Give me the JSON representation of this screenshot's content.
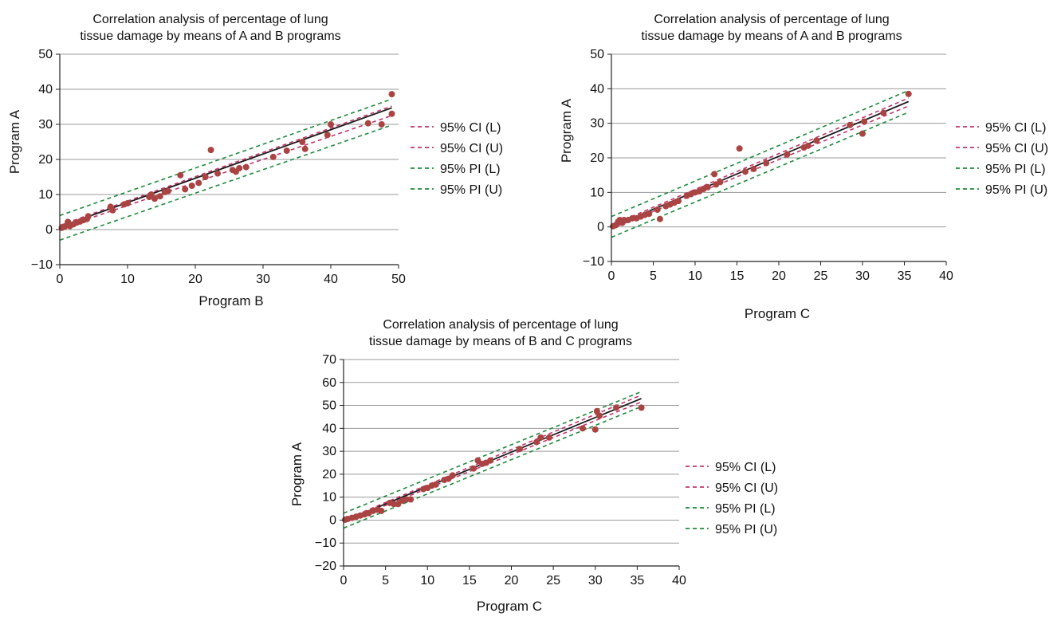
{
  "colors": {
    "points": "#a94442",
    "fit": "#1b1b1b",
    "ci": "#c2356b",
    "pi": "#1f8a3c",
    "grid": "#9a9a9a",
    "axis": "#222222"
  },
  "chart_data": [
    {
      "type": "scatter",
      "title_lines": [
        "Correlation analysis of percentage of lung",
        "tissue damage by means of A and B programs"
      ],
      "xlabel": "Program B",
      "ylabel": "Program A",
      "xlim": [
        0,
        50
      ],
      "ylim": [
        -10,
        50
      ],
      "xticks": [
        0,
        10,
        20,
        30,
        40,
        50
      ],
      "yticks": [
        -10,
        0,
        10,
        20,
        30,
        40,
        50
      ],
      "grid": "horizontal",
      "legend_position": "right",
      "legend": [
        "95% CI (L)",
        "95% CI (U)",
        "95% PI (L)",
        "95% PI (U)"
      ],
      "fit_line": {
        "x": [
          0,
          49
        ],
        "y": [
          0.8,
          34.7
        ]
      },
      "ci_lower": {
        "x": [
          0,
          49
        ],
        "y": [
          0.3,
          32.5
        ]
      },
      "ci_upper": {
        "x": [
          0,
          49
        ],
        "y": [
          1.2,
          35.2
        ]
      },
      "pi_lower": {
        "x": [
          0,
          49
        ],
        "y": [
          -3.0,
          29.8
        ]
      },
      "pi_upper": {
        "x": [
          0,
          49
        ],
        "y": [
          4.0,
          37.2
        ]
      },
      "points": [
        [
          0.3,
          0.5
        ],
        [
          0.7,
          0.8
        ],
        [
          1.0,
          1.2
        ],
        [
          1.2,
          2.2
        ],
        [
          1.5,
          1.0
        ],
        [
          2.0,
          1.5
        ],
        [
          2.5,
          2.0
        ],
        [
          3.0,
          2.3
        ],
        [
          3.5,
          2.7
        ],
        [
          4.0,
          3.0
        ],
        [
          4.2,
          3.8
        ],
        [
          7.5,
          6.5
        ],
        [
          7.8,
          5.5
        ],
        [
          9.5,
          7.2
        ],
        [
          10.0,
          7.5
        ],
        [
          13.2,
          9.3
        ],
        [
          13.5,
          10.0
        ],
        [
          14.0,
          8.8
        ],
        [
          14.8,
          9.5
        ],
        [
          15.5,
          10.7
        ],
        [
          16.0,
          11.0
        ],
        [
          17.8,
          15.5
        ],
        [
          18.5,
          11.5
        ],
        [
          19.5,
          12.5
        ],
        [
          20.5,
          13.3
        ],
        [
          21.5,
          15.0
        ],
        [
          22.3,
          22.7
        ],
        [
          23.3,
          16.0
        ],
        [
          25.5,
          17.0
        ],
        [
          26.0,
          16.5
        ],
        [
          26.5,
          17.5
        ],
        [
          27.5,
          17.8
        ],
        [
          31.5,
          20.7
        ],
        [
          33.5,
          22.5
        ],
        [
          35.8,
          25.0
        ],
        [
          36.2,
          23.0
        ],
        [
          39.5,
          27.0
        ],
        [
          40.0,
          30.0
        ],
        [
          45.5,
          30.3
        ],
        [
          47.5,
          30.0
        ],
        [
          49.0,
          38.6
        ],
        [
          49.0,
          33.0
        ]
      ]
    },
    {
      "type": "scatter",
      "title_lines": [
        "Correlation analysis of percentage of lung",
        "tissue damage by means of A and B programs"
      ],
      "xlabel": "Program C",
      "ylabel": "Program A",
      "xlim": [
        0,
        40
      ],
      "ylim": [
        -10,
        50
      ],
      "xticks": [
        0,
        5,
        10,
        15,
        20,
        25,
        30,
        35,
        40
      ],
      "yticks": [
        -10,
        0,
        10,
        20,
        30,
        40,
        50
      ],
      "grid": "horizontal",
      "legend_position": "right",
      "legend": [
        "95% CI (L)",
        "95% CI (U)",
        "95% PI (L)",
        "95% PI (U)"
      ],
      "fit_line": {
        "x": [
          0,
          35.5
        ],
        "y": [
          0.0,
          36.3
        ]
      },
      "ci_lower": {
        "x": [
          0,
          35.5
        ],
        "y": [
          -0.5,
          35.0
        ]
      },
      "ci_upper": {
        "x": [
          0,
          35.5
        ],
        "y": [
          0.5,
          37.3
        ]
      },
      "pi_lower": {
        "x": [
          0,
          35.5
        ],
        "y": [
          -3.0,
          33.2
        ]
      },
      "pi_upper": {
        "x": [
          0,
          35.5
        ],
        "y": [
          3.0,
          39.5
        ]
      },
      "points": [
        [
          0.2,
          0.2
        ],
        [
          0.5,
          0.5
        ],
        [
          0.8,
          1.5
        ],
        [
          1.0,
          2.0
        ],
        [
          1.3,
          1.2
        ],
        [
          1.5,
          2.0
        ],
        [
          2.0,
          2.0
        ],
        [
          2.5,
          2.5
        ],
        [
          3.0,
          2.5
        ],
        [
          3.5,
          3.0
        ],
        [
          4.0,
          3.5
        ],
        [
          4.5,
          3.8
        ],
        [
          5.5,
          5.0
        ],
        [
          5.8,
          2.3
        ],
        [
          6.5,
          6.0
        ],
        [
          7.0,
          6.5
        ],
        [
          7.5,
          7.0
        ],
        [
          8.0,
          7.5
        ],
        [
          9.0,
          9.0
        ],
        [
          9.5,
          9.5
        ],
        [
          10.0,
          10.0
        ],
        [
          10.5,
          10.3
        ],
        [
          11.0,
          11.0
        ],
        [
          11.5,
          11.5
        ],
        [
          12.3,
          15.3
        ],
        [
          12.5,
          12.3
        ],
        [
          13.0,
          13.0
        ],
        [
          15.3,
          22.7
        ],
        [
          16.0,
          16.0
        ],
        [
          17.0,
          16.8
        ],
        [
          18.5,
          18.5
        ],
        [
          21.0,
          21.0
        ],
        [
          23.0,
          23.0
        ],
        [
          23.5,
          23.5
        ],
        [
          24.5,
          25.0
        ],
        [
          28.5,
          29.5
        ],
        [
          30.0,
          27.0
        ],
        [
          30.2,
          30.5
        ],
        [
          32.5,
          33.0
        ],
        [
          35.5,
          38.5
        ]
      ]
    },
    {
      "type": "scatter",
      "title_lines": [
        "Correlation analysis of percentage of lung",
        "tissue damage by means of B and C programs"
      ],
      "xlabel": "Program C",
      "ylabel": "Program A",
      "xlim": [
        0,
        40
      ],
      "ylim": [
        -20,
        70
      ],
      "xticks": [
        0,
        5,
        10,
        15,
        20,
        25,
        30,
        35,
        40
      ],
      "yticks": [
        -20,
        -10,
        0,
        10,
        20,
        30,
        40,
        50,
        60,
        70
      ],
      "grid": "horizontal",
      "legend_position": "right",
      "legend": [
        "95% CI (L)",
        "95% CI (U)",
        "95% PI (L)",
        "95% PI (U)"
      ],
      "fit_line": {
        "x": [
          0,
          35.5
        ],
        "y": [
          -0.5,
          53.0
        ]
      },
      "ci_lower": {
        "x": [
          0,
          35.5
        ],
        "y": [
          -1.0,
          51.5
        ]
      },
      "ci_upper": {
        "x": [
          0,
          35.5
        ],
        "y": [
          0.0,
          54.5
        ]
      },
      "pi_lower": {
        "x": [
          0,
          35.5
        ],
        "y": [
          -3.5,
          49.5
        ]
      },
      "pi_upper": {
        "x": [
          0,
          35.5
        ],
        "y": [
          3.0,
          56.0
        ]
      },
      "points": [
        [
          0.2,
          0.2
        ],
        [
          0.5,
          0.5
        ],
        [
          1.0,
          1.0
        ],
        [
          1.5,
          1.5
        ],
        [
          2.0,
          2.0
        ],
        [
          2.5,
          2.5
        ],
        [
          3.0,
          3.0
        ],
        [
          3.5,
          4.0
        ],
        [
          4.0,
          4.5
        ],
        [
          4.5,
          4.0
        ],
        [
          5.5,
          7.5
        ],
        [
          6.0,
          7.0
        ],
        [
          6.5,
          7.0
        ],
        [
          7.0,
          8.5
        ],
        [
          7.5,
          9.0
        ],
        [
          8.0,
          9.0
        ],
        [
          9.5,
          13.5
        ],
        [
          10.0,
          14.0
        ],
        [
          10.5,
          15.0
        ],
        [
          11.0,
          15.5
        ],
        [
          12.0,
          17.5
        ],
        [
          12.5,
          18.0
        ],
        [
          13.0,
          19.5
        ],
        [
          15.5,
          22.5
        ],
        [
          16.0,
          26.0
        ],
        [
          16.5,
          24.5
        ],
        [
          17.0,
          25.0
        ],
        [
          17.5,
          26.0
        ],
        [
          21.0,
          31.0
        ],
        [
          23.0,
          34.0
        ],
        [
          23.5,
          36.0
        ],
        [
          24.5,
          36.0
        ],
        [
          28.5,
          40.0
        ],
        [
          30.0,
          39.5
        ],
        [
          30.2,
          47.5
        ],
        [
          30.5,
          45.5
        ],
        [
          32.5,
          49.0
        ],
        [
          35.5,
          49.0
        ]
      ]
    }
  ]
}
